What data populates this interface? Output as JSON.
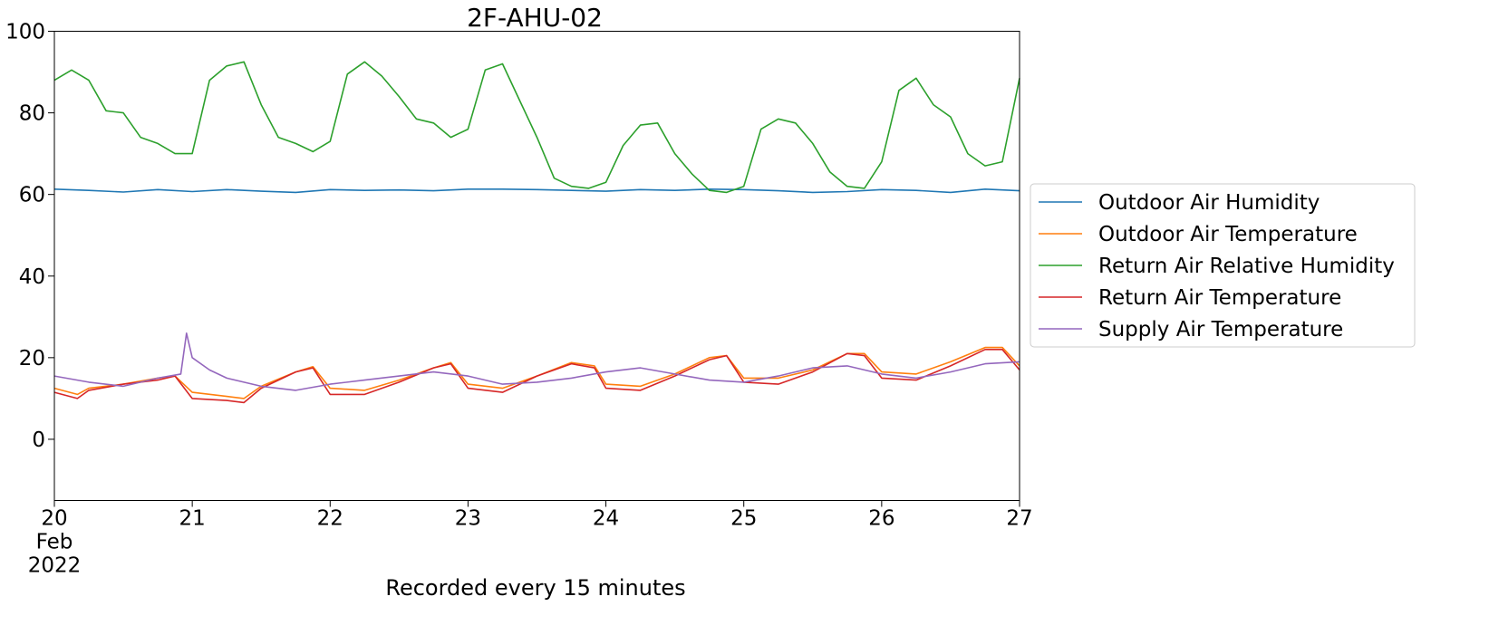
{
  "chart_data": {
    "type": "line",
    "title": "2F-AHU-02",
    "xlabel": "Recorded every 15 minutes",
    "ylabel": "",
    "x_axis": {
      "type": "date",
      "range": [
        "2022-02-20",
        "2022-02-27"
      ],
      "ticks": [
        "2022-02-20",
        "2022-02-21",
        "2022-02-22",
        "2022-02-23",
        "2022-02-24",
        "2022-02-25",
        "2022-02-26",
        "2022-02-27"
      ],
      "tick_labels": [
        "20",
        "21",
        "22",
        "23",
        "24",
        "25",
        "26",
        "27"
      ],
      "first_tick_sublabels": [
        "Feb",
        "2022"
      ]
    },
    "ylim": [
      -15,
      100
    ],
    "yticks": [
      0,
      20,
      40,
      60,
      80,
      100
    ],
    "grid": false,
    "legend": {
      "placement": "outside-right"
    },
    "series": [
      {
        "name": "Outdoor Air Humidity",
        "color": "#1f77b4",
        "points": [
          [
            "2022-02-20 00:00",
            61.3
          ],
          [
            "2022-02-20 06:00",
            61.0
          ],
          [
            "2022-02-20 12:00",
            60.6
          ],
          [
            "2022-02-20 18:00",
            61.2
          ],
          [
            "2022-02-21 00:00",
            60.7
          ],
          [
            "2022-02-21 06:00",
            61.2
          ],
          [
            "2022-02-21 12:00",
            60.8
          ],
          [
            "2022-02-21 18:00",
            60.5
          ],
          [
            "2022-02-22 00:00",
            61.2
          ],
          [
            "2022-02-22 06:00",
            61.0
          ],
          [
            "2022-02-22 12:00",
            61.1
          ],
          [
            "2022-02-22 18:00",
            60.9
          ],
          [
            "2022-02-23 00:00",
            61.3
          ],
          [
            "2022-02-23 06:00",
            61.3
          ],
          [
            "2022-02-23 12:00",
            61.2
          ],
          [
            "2022-02-23 18:00",
            61.0
          ],
          [
            "2022-02-24 00:00",
            60.8
          ],
          [
            "2022-02-24 06:00",
            61.2
          ],
          [
            "2022-02-24 12:00",
            61.0
          ],
          [
            "2022-02-24 18:00",
            61.3
          ],
          [
            "2022-02-25 00:00",
            61.2
          ],
          [
            "2022-02-25 06:00",
            60.9
          ],
          [
            "2022-02-25 12:00",
            60.5
          ],
          [
            "2022-02-25 18:00",
            60.7
          ],
          [
            "2022-02-26 00:00",
            61.2
          ],
          [
            "2022-02-26 06:00",
            61.0
          ],
          [
            "2022-02-26 12:00",
            60.5
          ],
          [
            "2022-02-26 18:00",
            61.3
          ],
          [
            "2022-02-27 00:00",
            60.9
          ]
        ]
      },
      {
        "name": "Outdoor Air Temperature",
        "color": "#ff7f0e",
        "points": [
          [
            "2022-02-20 00:00",
            12.5
          ],
          [
            "2022-02-20 04:00",
            11.0
          ],
          [
            "2022-02-20 06:00",
            12.5
          ],
          [
            "2022-02-20 12:00",
            13.5
          ],
          [
            "2022-02-20 18:00",
            15.0
          ],
          [
            "2022-02-20 21:00",
            15.5
          ],
          [
            "2022-02-21 00:00",
            11.5
          ],
          [
            "2022-02-21 06:00",
            10.5
          ],
          [
            "2022-02-21 09:00",
            10.0
          ],
          [
            "2022-02-21 12:00",
            13.0
          ],
          [
            "2022-02-21 18:00",
            16.5
          ],
          [
            "2022-02-21 21:00",
            17.8
          ],
          [
            "2022-02-22 00:00",
            12.5
          ],
          [
            "2022-02-22 06:00",
            12.0
          ],
          [
            "2022-02-22 12:00",
            14.5
          ],
          [
            "2022-02-22 18:00",
            17.5
          ],
          [
            "2022-02-22 21:00",
            18.8
          ],
          [
            "2022-02-23 00:00",
            13.5
          ],
          [
            "2022-02-23 06:00",
            12.5
          ],
          [
            "2022-02-23 12:00",
            15.5
          ],
          [
            "2022-02-23 18:00",
            18.8
          ],
          [
            "2022-02-23 22:00",
            18.0
          ],
          [
            "2022-02-24 00:00",
            13.5
          ],
          [
            "2022-02-24 06:00",
            13.0
          ],
          [
            "2022-02-24 12:00",
            16.0
          ],
          [
            "2022-02-24 18:00",
            20.0
          ],
          [
            "2022-02-24 21:00",
            20.5
          ],
          [
            "2022-02-25 00:00",
            15.0
          ],
          [
            "2022-02-25 06:00",
            15.0
          ],
          [
            "2022-02-25 12:00",
            17.0
          ],
          [
            "2022-02-25 18:00",
            21.0
          ],
          [
            "2022-02-25 21:00",
            21.0
          ],
          [
            "2022-02-26 00:00",
            16.5
          ],
          [
            "2022-02-26 06:00",
            16.0
          ],
          [
            "2022-02-26 12:00",
            19.0
          ],
          [
            "2022-02-26 18:00",
            22.5
          ],
          [
            "2022-02-26 21:00",
            22.5
          ],
          [
            "2022-02-27 00:00",
            18.0
          ]
        ]
      },
      {
        "name": "Return Air Relative Humidity",
        "color": "#2ca02c",
        "points": [
          [
            "2022-02-20 00:00",
            88.0
          ],
          [
            "2022-02-20 03:00",
            90.5
          ],
          [
            "2022-02-20 06:00",
            88.0
          ],
          [
            "2022-02-20 09:00",
            80.5
          ],
          [
            "2022-02-20 12:00",
            80.0
          ],
          [
            "2022-02-20 15:00",
            74.0
          ],
          [
            "2022-02-20 18:00",
            72.5
          ],
          [
            "2022-02-20 21:00",
            70.0
          ],
          [
            "2022-02-21 00:00",
            70.0
          ],
          [
            "2022-02-21 03:00",
            88.0
          ],
          [
            "2022-02-21 06:00",
            91.5
          ],
          [
            "2022-02-21 09:00",
            92.5
          ],
          [
            "2022-02-21 12:00",
            82.0
          ],
          [
            "2022-02-21 15:00",
            74.0
          ],
          [
            "2022-02-21 18:00",
            72.5
          ],
          [
            "2022-02-21 21:00",
            70.5
          ],
          [
            "2022-02-22 00:00",
            73.0
          ],
          [
            "2022-02-22 03:00",
            89.5
          ],
          [
            "2022-02-22 06:00",
            92.5
          ],
          [
            "2022-02-22 09:00",
            89.0
          ],
          [
            "2022-02-22 12:00",
            84.0
          ],
          [
            "2022-02-22 15:00",
            78.5
          ],
          [
            "2022-02-22 18:00",
            77.5
          ],
          [
            "2022-02-22 21:00",
            74.0
          ],
          [
            "2022-02-23 00:00",
            76.0
          ],
          [
            "2022-02-23 03:00",
            90.5
          ],
          [
            "2022-02-23 06:00",
            92.0
          ],
          [
            "2022-02-23 09:00",
            83.0
          ],
          [
            "2022-02-23 12:00",
            74.0
          ],
          [
            "2022-02-23 15:00",
            64.0
          ],
          [
            "2022-02-23 18:00",
            62.0
          ],
          [
            "2022-02-23 21:00",
            61.5
          ],
          [
            "2022-02-24 00:00",
            63.0
          ],
          [
            "2022-02-24 03:00",
            72.0
          ],
          [
            "2022-02-24 06:00",
            77.0
          ],
          [
            "2022-02-24 09:00",
            77.5
          ],
          [
            "2022-02-24 12:00",
            70.0
          ],
          [
            "2022-02-24 15:00",
            65.0
          ],
          [
            "2022-02-24 18:00",
            61.0
          ],
          [
            "2022-02-24 21:00",
            60.5
          ],
          [
            "2022-02-25 00:00",
            62.0
          ],
          [
            "2022-02-25 03:00",
            76.0
          ],
          [
            "2022-02-25 06:00",
            78.5
          ],
          [
            "2022-02-25 09:00",
            77.5
          ],
          [
            "2022-02-25 12:00",
            72.5
          ],
          [
            "2022-02-25 15:00",
            65.5
          ],
          [
            "2022-02-25 18:00",
            62.0
          ],
          [
            "2022-02-25 21:00",
            61.5
          ],
          [
            "2022-02-26 00:00",
            68.0
          ],
          [
            "2022-02-26 03:00",
            85.5
          ],
          [
            "2022-02-26 06:00",
            88.5
          ],
          [
            "2022-02-26 09:00",
            82.0
          ],
          [
            "2022-02-26 12:00",
            79.0
          ],
          [
            "2022-02-26 15:00",
            70.0
          ],
          [
            "2022-02-26 18:00",
            67.0
          ],
          [
            "2022-02-26 21:00",
            68.0
          ],
          [
            "2022-02-27 00:00",
            88.5
          ]
        ]
      },
      {
        "name": "Return Air Temperature",
        "color": "#d62728",
        "points": [
          [
            "2022-02-20 00:00",
            11.5
          ],
          [
            "2022-02-20 04:00",
            10.0
          ],
          [
            "2022-02-20 06:00",
            12.0
          ],
          [
            "2022-02-20 12:00",
            13.5
          ],
          [
            "2022-02-20 18:00",
            14.5
          ],
          [
            "2022-02-20 21:00",
            15.5
          ],
          [
            "2022-02-21 00:00",
            10.0
          ],
          [
            "2022-02-21 06:00",
            9.5
          ],
          [
            "2022-02-21 09:00",
            9.0
          ],
          [
            "2022-02-21 12:00",
            12.5
          ],
          [
            "2022-02-21 18:00",
            16.5
          ],
          [
            "2022-02-21 21:00",
            17.5
          ],
          [
            "2022-02-22 00:00",
            11.0
          ],
          [
            "2022-02-22 06:00",
            11.0
          ],
          [
            "2022-02-22 12:00",
            14.0
          ],
          [
            "2022-02-22 18:00",
            17.5
          ],
          [
            "2022-02-22 21:00",
            18.5
          ],
          [
            "2022-02-23 00:00",
            12.5
          ],
          [
            "2022-02-23 06:00",
            11.5
          ],
          [
            "2022-02-23 12:00",
            15.5
          ],
          [
            "2022-02-23 18:00",
            18.5
          ],
          [
            "2022-02-23 22:00",
            17.5
          ],
          [
            "2022-02-24 00:00",
            12.5
          ],
          [
            "2022-02-24 06:00",
            12.0
          ],
          [
            "2022-02-24 12:00",
            15.5
          ],
          [
            "2022-02-24 18:00",
            19.5
          ],
          [
            "2022-02-24 21:00",
            20.5
          ],
          [
            "2022-02-25 00:00",
            14.0
          ],
          [
            "2022-02-25 06:00",
            13.5
          ],
          [
            "2022-02-25 12:00",
            16.5
          ],
          [
            "2022-02-25 18:00",
            21.0
          ],
          [
            "2022-02-25 21:00",
            20.5
          ],
          [
            "2022-02-26 00:00",
            15.0
          ],
          [
            "2022-02-26 06:00",
            14.5
          ],
          [
            "2022-02-26 12:00",
            18.0
          ],
          [
            "2022-02-26 18:00",
            22.0
          ],
          [
            "2022-02-26 21:00",
            22.0
          ],
          [
            "2022-02-27 00:00",
            17.0
          ]
        ]
      },
      {
        "name": "Supply Air Temperature",
        "color": "#9467bd",
        "points": [
          [
            "2022-02-20 00:00",
            15.5
          ],
          [
            "2022-02-20 06:00",
            14.0
          ],
          [
            "2022-02-20 12:00",
            13.0
          ],
          [
            "2022-02-20 18:00",
            15.0
          ],
          [
            "2022-02-20 22:00",
            16.0
          ],
          [
            "2022-02-20 23:00",
            26.0
          ],
          [
            "2022-02-21 00:00",
            20.0
          ],
          [
            "2022-02-21 03:00",
            17.0
          ],
          [
            "2022-02-21 06:00",
            15.0
          ],
          [
            "2022-02-21 12:00",
            13.0
          ],
          [
            "2022-02-21 18:00",
            12.0
          ],
          [
            "2022-02-22 00:00",
            13.5
          ],
          [
            "2022-02-22 06:00",
            14.5
          ],
          [
            "2022-02-22 12:00",
            15.5
          ],
          [
            "2022-02-22 18:00",
            16.5
          ],
          [
            "2022-02-23 00:00",
            15.5
          ],
          [
            "2022-02-23 06:00",
            13.5
          ],
          [
            "2022-02-23 12:00",
            14.0
          ],
          [
            "2022-02-23 18:00",
            15.0
          ],
          [
            "2022-02-24 00:00",
            16.5
          ],
          [
            "2022-02-24 06:00",
            17.5
          ],
          [
            "2022-02-24 12:00",
            16.0
          ],
          [
            "2022-02-24 18:00",
            14.5
          ],
          [
            "2022-02-25 00:00",
            14.0
          ],
          [
            "2022-02-25 06:00",
            15.5
          ],
          [
            "2022-02-25 12:00",
            17.5
          ],
          [
            "2022-02-25 18:00",
            18.0
          ],
          [
            "2022-02-26 00:00",
            16.0
          ],
          [
            "2022-02-26 06:00",
            15.0
          ],
          [
            "2022-02-26 12:00",
            16.5
          ],
          [
            "2022-02-26 18:00",
            18.5
          ],
          [
            "2022-02-27 00:00",
            19.0
          ]
        ]
      }
    ]
  }
}
